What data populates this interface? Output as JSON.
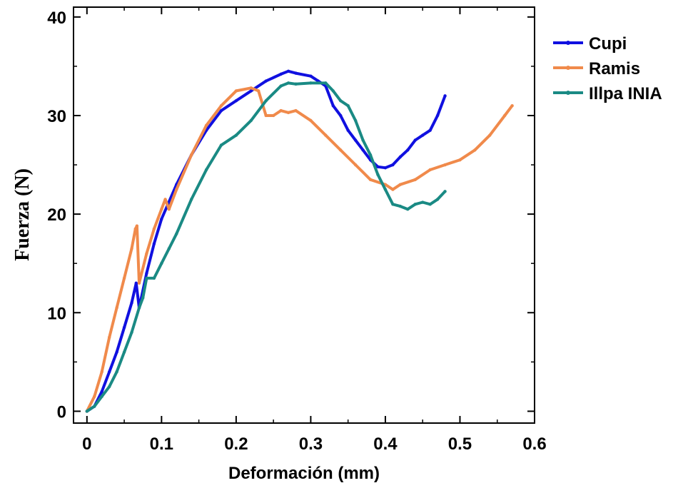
{
  "chart_data": {
    "type": "line",
    "xlabel": "Deformación (mm)",
    "ylabel": "Fuerza (N)",
    "xlim": [
      -0.018,
      0.6
    ],
    "ylim": [
      -1.2,
      41
    ],
    "xticks": [
      0,
      0.1,
      0.2,
      0.3,
      0.4,
      0.5,
      0.6
    ],
    "xtick_labels": [
      "0",
      "0.1",
      "0.2",
      "0.3",
      "0.4",
      "0.5",
      "0.6"
    ],
    "yticks": [
      0,
      10,
      20,
      30,
      40
    ],
    "ytick_labels": [
      "0",
      "10",
      "20",
      "30",
      "40"
    ],
    "grid": false,
    "legend_position": "right",
    "series": [
      {
        "name": "Cupi",
        "color": "#1010e0",
        "x": [
          0,
          0.01,
          0.02,
          0.03,
          0.04,
          0.05,
          0.06,
          0.066,
          0.07,
          0.08,
          0.09,
          0.1,
          0.12,
          0.14,
          0.16,
          0.18,
          0.2,
          0.22,
          0.24,
          0.26,
          0.27,
          0.28,
          0.3,
          0.31,
          0.32,
          0.33,
          0.34,
          0.35,
          0.36,
          0.37,
          0.38,
          0.39,
          0.4,
          0.41,
          0.42,
          0.43,
          0.44,
          0.45,
          0.46,
          0.47,
          0.48
        ],
        "y": [
          0,
          0.5,
          2,
          4,
          6,
          8.5,
          11,
          13,
          10.5,
          14,
          17,
          19.5,
          23,
          26,
          28.5,
          30.5,
          31.5,
          32.5,
          33.5,
          34.2,
          34.5,
          34.3,
          34,
          33.5,
          33,
          31,
          30,
          28.5,
          27.5,
          26.5,
          25.5,
          24.8,
          24.7,
          25,
          25.8,
          26.5,
          27.5,
          28,
          28.5,
          30,
          32
        ]
      },
      {
        "name": "Ramis",
        "color": "#f08a4b",
        "x": [
          0,
          0.01,
          0.02,
          0.03,
          0.04,
          0.05,
          0.06,
          0.065,
          0.067,
          0.07,
          0.08,
          0.09,
          0.1,
          0.105,
          0.11,
          0.12,
          0.14,
          0.16,
          0.18,
          0.2,
          0.22,
          0.23,
          0.24,
          0.25,
          0.26,
          0.27,
          0.28,
          0.3,
          0.32,
          0.34,
          0.36,
          0.38,
          0.4,
          0.41,
          0.42,
          0.44,
          0.46,
          0.48,
          0.5,
          0.52,
          0.54,
          0.56,
          0.57
        ],
        "y": [
          0,
          1.5,
          4,
          7.5,
          10.5,
          13.5,
          16.5,
          18.5,
          18.8,
          13,
          16,
          18.5,
          20.5,
          21.5,
          20.5,
          22.5,
          26,
          29,
          31,
          32.5,
          32.8,
          32.5,
          30,
          30,
          30.5,
          30.3,
          30.5,
          29.5,
          28,
          26.5,
          25,
          23.5,
          23,
          22.5,
          23,
          23.5,
          24.5,
          25,
          25.5,
          26.5,
          28,
          30,
          31
        ]
      },
      {
        "name": "Illpa INIA",
        "color": "#1a8a84",
        "x": [
          0,
          0.01,
          0.02,
          0.03,
          0.04,
          0.05,
          0.06,
          0.07,
          0.075,
          0.08,
          0.09,
          0.1,
          0.11,
          0.12,
          0.14,
          0.16,
          0.18,
          0.2,
          0.22,
          0.24,
          0.26,
          0.27,
          0.28,
          0.3,
          0.32,
          0.33,
          0.34,
          0.35,
          0.36,
          0.37,
          0.38,
          0.39,
          0.4,
          0.41,
          0.42,
          0.43,
          0.44,
          0.45,
          0.46,
          0.47,
          0.48
        ],
        "y": [
          0,
          0.5,
          1.5,
          2.5,
          4,
          6,
          8,
          10.5,
          11.5,
          13.5,
          13.5,
          15,
          16.5,
          18,
          21.5,
          24.5,
          27,
          28,
          29.5,
          31.5,
          33,
          33.3,
          33.2,
          33.3,
          33.3,
          32.5,
          31.5,
          31,
          29.5,
          27.5,
          26,
          24,
          22.5,
          21,
          20.8,
          20.5,
          21,
          21.2,
          21,
          21.5,
          22.3
        ]
      }
    ]
  }
}
